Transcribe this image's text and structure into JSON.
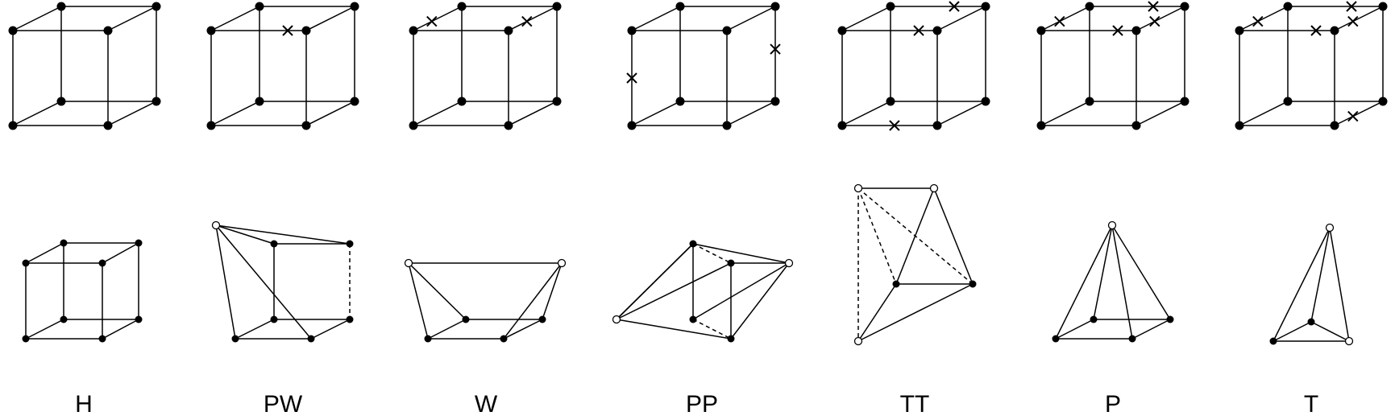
{
  "figure": {
    "colors": {
      "stroke": "#000000",
      "fill": "#000000",
      "hollow": "#ffffff",
      "background": "#ffffff"
    },
    "top_row": [
      {
        "name": "H",
        "marks": []
      },
      {
        "name": "PW",
        "marks": [
          "back-top-edge"
        ]
      },
      {
        "name": "W",
        "marks": [
          "top-left-diagonal",
          "top-right-diagonal"
        ]
      },
      {
        "name": "PP",
        "marks": [
          "front-left-vertical",
          "back-right-vertical"
        ]
      },
      {
        "name": "TT",
        "marks": [
          "back-top-edge",
          "top-back-edge",
          "bottom-front-edge"
        ]
      },
      {
        "name": "P",
        "marks": [
          "top-left-diagonal",
          "back-top-edge",
          "top-back-edge",
          "top-right-diagonal"
        ]
      },
      {
        "name": "T",
        "marks": [
          "top-left-diagonal",
          "back-top-edge",
          "top-back-edge",
          "top-right-diagonal",
          "bottom-right-diagonal"
        ]
      }
    ],
    "labels": [
      "H",
      "PW",
      "W",
      "PP",
      "TT",
      "P",
      "T"
    ]
  }
}
